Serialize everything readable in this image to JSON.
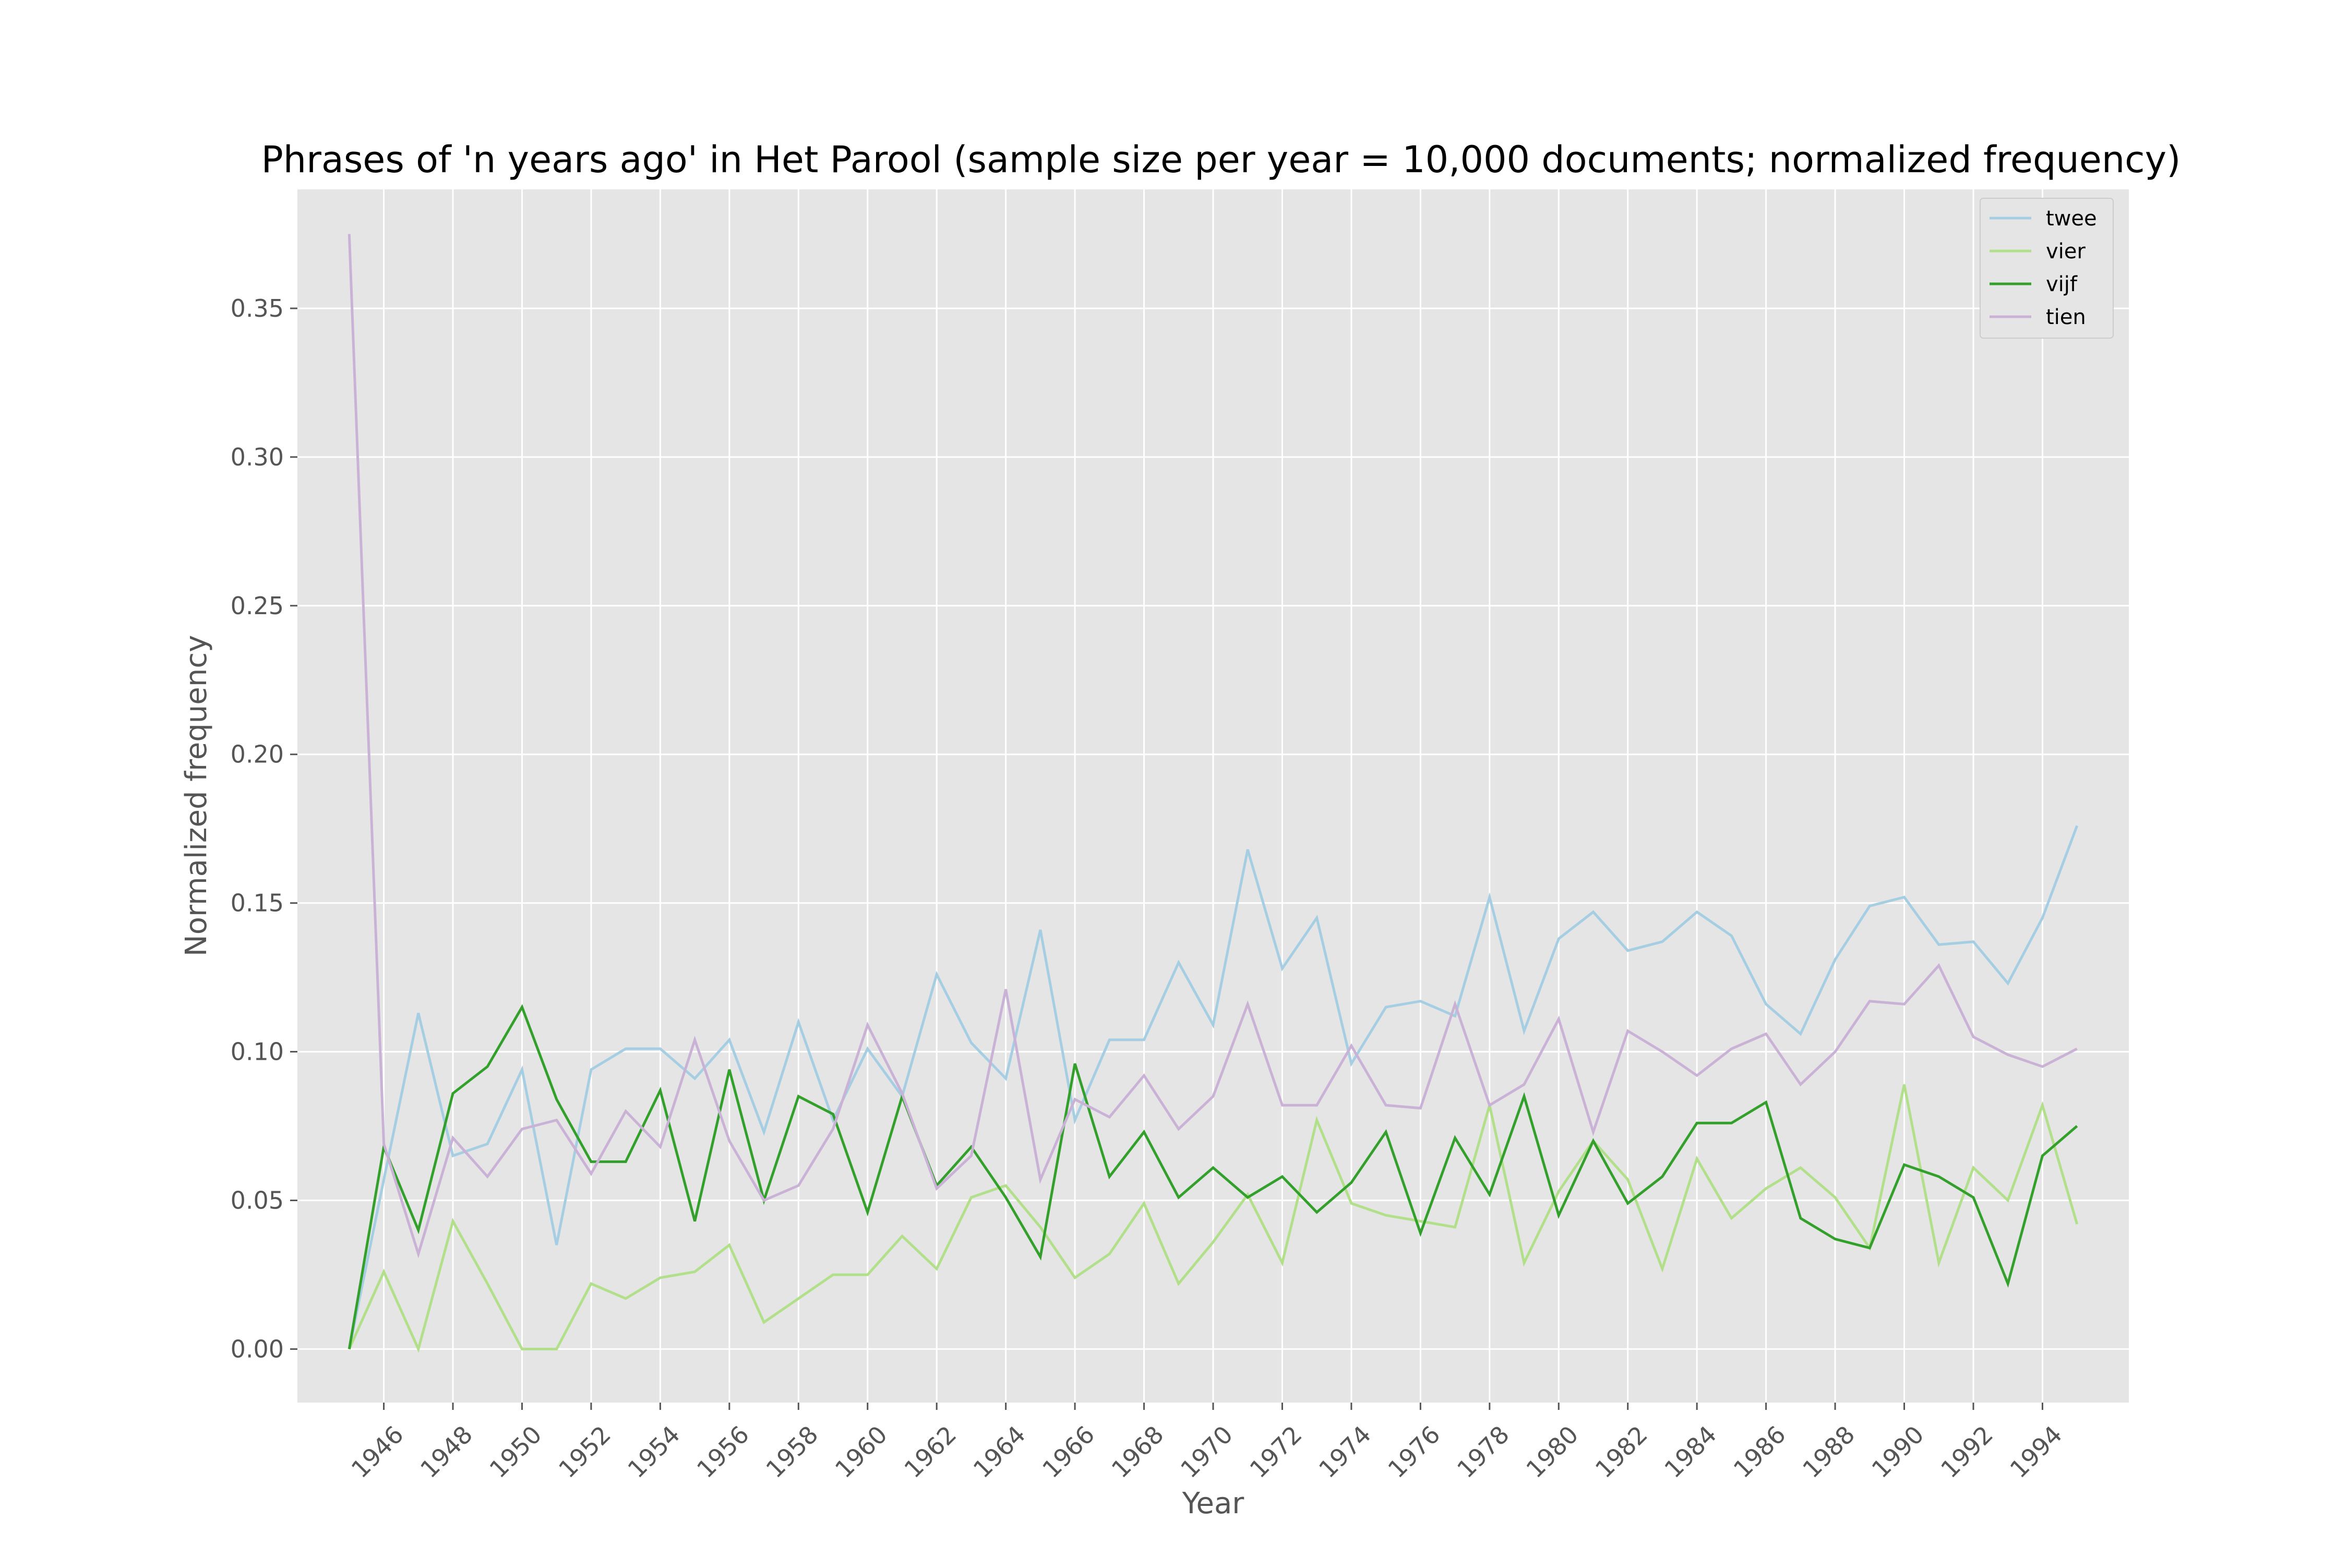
{
  "chart_data": {
    "type": "line",
    "title": "Phrases of 'n years ago' in Het Parool (sample size per year = 10,000 documents; normalized frequency)",
    "xlabel": "Year",
    "ylabel": "Normalized frequency",
    "xlim": [
      1943.5,
      1996.5
    ],
    "ylim": [
      -0.018,
      0.39
    ],
    "xticks": [
      1946,
      1948,
      1950,
      1952,
      1954,
      1956,
      1958,
      1960,
      1962,
      1964,
      1966,
      1968,
      1970,
      1972,
      1974,
      1976,
      1978,
      1980,
      1982,
      1984,
      1986,
      1988,
      1990,
      1992,
      1994
    ],
    "xtick_labels": [
      "1946",
      "1948",
      "1950",
      "1952",
      "1954",
      "1956",
      "1958",
      "1960",
      "1962",
      "1964",
      "1966",
      "1968",
      "1970",
      "1972",
      "1974",
      "1976",
      "1978",
      "1980",
      "1982",
      "1984",
      "1986",
      "1988",
      "1990",
      "1992",
      "1994"
    ],
    "yticks": [
      0.0,
      0.05,
      0.1,
      0.15,
      0.2,
      0.25,
      0.3,
      0.35
    ],
    "ytick_labels": [
      "0.00",
      "0.05",
      "0.10",
      "0.15",
      "0.20",
      "0.25",
      "0.30",
      "0.35"
    ],
    "grid": true,
    "legend_position": "top-right",
    "background_color": "#e5e5e5",
    "x": [
      1945,
      1946,
      1947,
      1948,
      1949,
      1950,
      1951,
      1952,
      1953,
      1954,
      1955,
      1956,
      1957,
      1958,
      1959,
      1960,
      1961,
      1962,
      1963,
      1964,
      1965,
      1966,
      1967,
      1968,
      1969,
      1970,
      1971,
      1972,
      1973,
      1974,
      1975,
      1976,
      1977,
      1978,
      1979,
      1980,
      1981,
      1982,
      1983,
      1984,
      1985,
      1986,
      1987,
      1988,
      1989,
      1990,
      1991,
      1992,
      1993,
      1994,
      1995
    ],
    "series": [
      {
        "name": "twee",
        "color": "#a6cee3",
        "values": [
          0.0,
          0.057,
          0.113,
          0.065,
          0.069,
          0.094,
          0.035,
          0.094,
          0.101,
          0.101,
          0.091,
          0.104,
          0.073,
          0.11,
          0.077,
          0.101,
          0.085,
          0.126,
          0.103,
          0.091,
          0.141,
          0.077,
          0.104,
          0.104,
          0.13,
          0.109,
          0.168,
          0.128,
          0.145,
          0.096,
          0.115,
          0.117,
          0.112,
          0.152,
          0.107,
          0.138,
          0.147,
          0.134,
          0.137,
          0.147,
          0.139,
          0.116,
          0.106,
          0.131,
          0.149,
          0.152,
          0.136,
          0.137,
          0.123,
          0.145,
          0.176
        ]
      },
      {
        "name": "vier",
        "color": "#b2df8a",
        "values": [
          0.0,
          0.026,
          0.0,
          0.043,
          0.022,
          0.0,
          0.0,
          0.022,
          0.017,
          0.024,
          0.026,
          0.035,
          0.009,
          0.017,
          0.025,
          0.025,
          0.038,
          0.027,
          0.051,
          0.055,
          0.041,
          0.024,
          0.032,
          0.049,
          0.022,
          0.036,
          0.052,
          0.029,
          0.077,
          0.049,
          0.045,
          0.043,
          0.041,
          0.082,
          0.029,
          0.053,
          0.07,
          0.057,
          0.027,
          0.064,
          0.044,
          0.054,
          0.061,
          0.051,
          0.034,
          0.089,
          0.029,
          0.061,
          0.05,
          0.082,
          0.042
        ]
      },
      {
        "name": "vijf",
        "color": "#33a02c",
        "values": [
          0.0,
          0.068,
          0.04,
          0.086,
          0.095,
          0.115,
          0.084,
          0.063,
          0.063,
          0.087,
          0.043,
          0.094,
          0.05,
          0.085,
          0.079,
          0.046,
          0.085,
          0.055,
          0.068,
          0.051,
          0.031,
          0.096,
          0.058,
          0.073,
          0.051,
          0.061,
          0.051,
          0.058,
          0.046,
          0.056,
          0.073,
          0.039,
          0.071,
          0.052,
          0.085,
          0.045,
          0.07,
          0.049,
          0.058,
          0.076,
          0.076,
          0.083,
          0.044,
          0.037,
          0.034,
          0.062,
          0.058,
          0.051,
          0.022,
          0.065,
          0.075
        ]
      },
      {
        "name": "tien",
        "color": "#cab2d6",
        "values": [
          0.375,
          0.069,
          0.032,
          0.071,
          0.058,
          0.074,
          0.077,
          0.059,
          0.08,
          0.068,
          0.104,
          0.07,
          0.05,
          0.055,
          0.074,
          0.109,
          0.086,
          0.054,
          0.065,
          0.121,
          0.057,
          0.084,
          0.078,
          0.092,
          0.074,
          0.085,
          0.116,
          0.082,
          0.082,
          0.102,
          0.082,
          0.081,
          0.116,
          0.082,
          0.089,
          0.111,
          0.073,
          0.107,
          0.1,
          0.092,
          0.101,
          0.106,
          0.089,
          0.1,
          0.117,
          0.116,
          0.129,
          0.105,
          0.099,
          0.095,
          0.101
        ]
      }
    ]
  }
}
